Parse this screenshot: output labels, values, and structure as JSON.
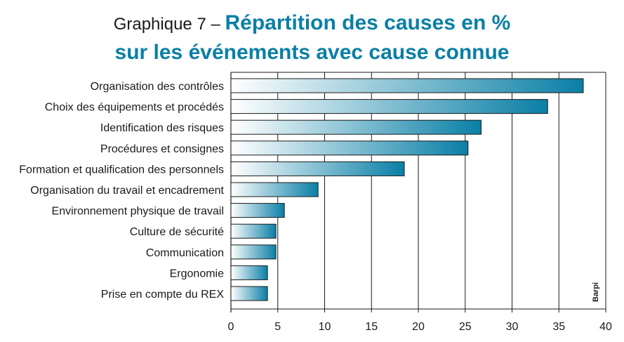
{
  "title": {
    "prefix": "Graphique 7 – ",
    "main": "Répartition des causes en %",
    "line2": "sur les événements avec cause connue"
  },
  "colors": {
    "bar_start": "#ffffff",
    "bar_end": "#0a7fa6",
    "title": "#0a7fa6",
    "grid": "#1a1a1a"
  },
  "chart_data": {
    "type": "bar",
    "orientation": "horizontal",
    "title": "Graphique 7 – Répartition des causes en % sur les événements avec cause connue",
    "xlabel": "",
    "ylabel": "",
    "xlim": [
      0,
      40
    ],
    "xticks": [
      0,
      5,
      10,
      15,
      20,
      25,
      30,
      35,
      40
    ],
    "grid": "vertical",
    "source": "Barpi",
    "categories": [
      "Organisation des contrôles",
      "Choix des équipements et procédés",
      "Identification des risques",
      "Procédures et consignes",
      "Formation et qualification des personnels",
      "Organisation du travail et encadrement",
      "Environnement physique de travail",
      "Culture de sécurité",
      "Communication",
      "Ergonomie",
      "Prise en compte du REX"
    ],
    "values": [
      37.6,
      33.8,
      26.7,
      25.3,
      18.5,
      9.3,
      5.7,
      4.8,
      4.8,
      3.9,
      3.9
    ]
  }
}
